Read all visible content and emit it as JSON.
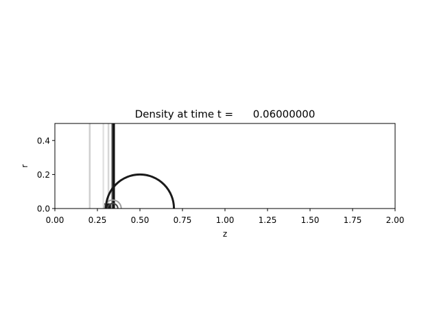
{
  "chart_data": {
    "type": "heatmap",
    "title": "Density at time t =      0.06000000",
    "xlabel": "z",
    "ylabel": "r",
    "xlim": [
      0.0,
      2.0
    ],
    "ylim": [
      0.0,
      0.5
    ],
    "x_ticks": [
      0.0,
      0.25,
      0.5,
      0.75,
      1.0,
      1.25,
      1.5,
      1.75,
      2.0
    ],
    "x_tick_labels": [
      "0.00",
      "0.25",
      "0.50",
      "0.75",
      "1.00",
      "1.25",
      "1.50",
      "1.75",
      "2.00"
    ],
    "y_ticks": [
      0.0,
      0.2,
      0.4
    ],
    "y_tick_labels": [
      "0.0",
      "0.2",
      "0.4"
    ],
    "grid": false,
    "colormap": "grayscale contour",
    "features": {
      "vertical_fronts": [
        {
          "z": 0.205,
          "color": "#cfcfcf"
        },
        {
          "z": 0.285,
          "color": "#e2e2e2"
        },
        {
          "z": 0.315,
          "color": "#d6d6d6"
        },
        {
          "z": 0.336,
          "color": "#9a9a9a"
        },
        {
          "z": 0.345,
          "color": "#161616"
        }
      ],
      "bubble_arc": {
        "center_z": 0.5,
        "radius": 0.2,
        "color": "#1a1a1a"
      },
      "inner_arcs": [
        {
          "center_z": 0.34,
          "radius": 0.05,
          "color": "#9e9e9e"
        },
        {
          "center_z": 0.34,
          "radius": 0.03,
          "color": "#444444"
        }
      ],
      "dark_band": {
        "z_start": 0.29,
        "z_end": 0.33,
        "r_max": 0.03,
        "color": "#1a1a1a"
      }
    }
  }
}
